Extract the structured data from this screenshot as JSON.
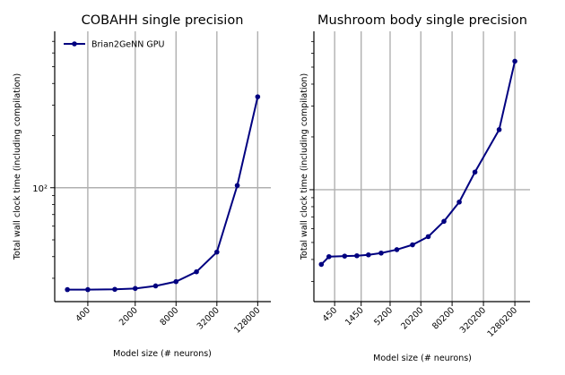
{
  "chart_data": [
    {
      "type": "line",
      "title": "COBAHH single precision",
      "xlabel": "Model size (# neurons)",
      "ylabel": "Total wall clock time (including compilation)",
      "x_scale": "log",
      "y_scale": "log",
      "xlim": [
        130,
        200000
      ],
      "ylim": [
        22,
        800
      ],
      "xticks": [
        400,
        2000,
        8000,
        32000,
        128000
      ],
      "xtick_labels": [
        "400",
        "2000",
        "8000",
        "32000",
        "128000"
      ],
      "yticks": [
        100
      ],
      "ytick_labels": [
        "10²"
      ],
      "grid": true,
      "legend": {
        "position": "top-left",
        "entries": [
          "Brian2GeNN GPU"
        ]
      },
      "series": [
        {
          "name": "Brian2GeNN GPU",
          "color": "#000080",
          "x": [
            200,
            400,
            1000,
            2000,
            4000,
            8000,
            16000,
            32000,
            64000,
            128000
          ],
          "values": [
            25.8,
            25.8,
            25.9,
            26.2,
            27.1,
            28.7,
            32.7,
            42.5,
            103,
            335
          ]
        }
      ]
    },
    {
      "type": "line",
      "title": "Mushroom body single precision",
      "xlabel": "Model size (# neurons)",
      "ylabel": "Total wall clock time (including compilation)",
      "x_scale": "log",
      "y_scale": "log",
      "xlim": [
        180,
        2500000
      ],
      "ylim": [
        23,
        800
      ],
      "xticks": [
        450,
        1450,
        5200,
        20200,
        80200,
        320200,
        1280200
      ],
      "xtick_labels": [
        "450",
        "1450",
        "5200",
        "20200",
        "80200",
        "320200",
        "1280200"
      ],
      "yticks": [
        100
      ],
      "ytick_labels": [
        ""
      ],
      "grid": true,
      "series": [
        {
          "name": "",
          "color": "#000080",
          "x": [
            250,
            350,
            700,
            1200,
            2000,
            3500,
            7000,
            14000,
            28000,
            56000,
            110000,
            220000,
            640000,
            1280200
          ],
          "values": [
            37.5,
            41.5,
            41.8,
            42.0,
            42.5,
            43.5,
            45.5,
            48.5,
            54,
            66,
            85,
            126,
            220,
            540
          ]
        }
      ]
    }
  ]
}
